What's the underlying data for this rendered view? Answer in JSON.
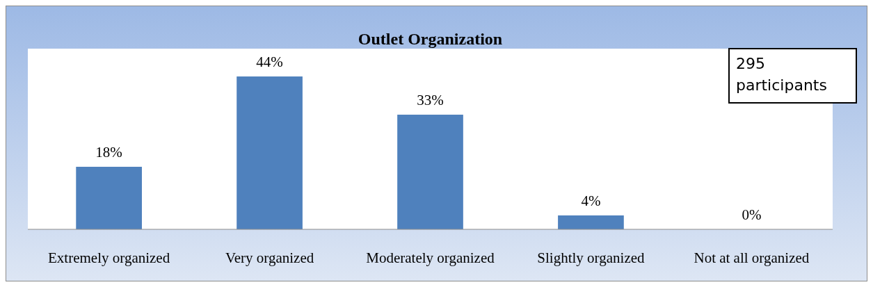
{
  "chart_data": {
    "type": "bar",
    "title": "Outlet Organization",
    "categories": [
      "Extremely organized",
      "Very organized",
      "Moderately organized",
      "Slightly organized",
      "Not at all organized"
    ],
    "values": [
      18,
      44,
      33,
      4,
      0
    ],
    "value_labels": [
      "18%",
      "44%",
      "33%",
      "4%",
      "0%"
    ],
    "color": "#4f81bd",
    "annotations": [
      "295 participants"
    ]
  }
}
